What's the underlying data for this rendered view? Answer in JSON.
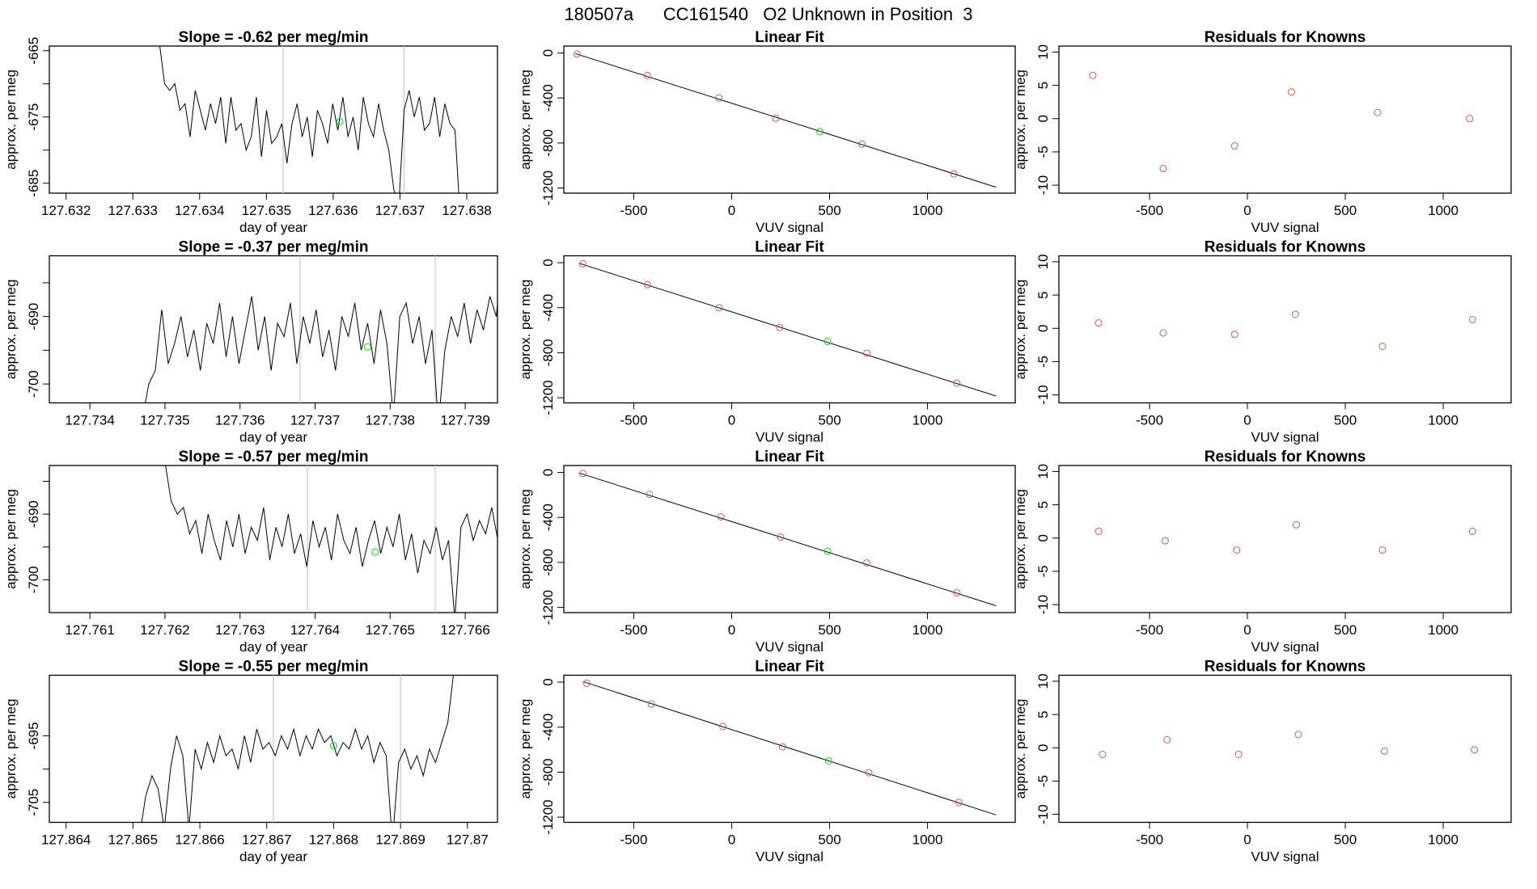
{
  "title": "180507a      CC161540   O2 Unknown in Position  3",
  "colors": {
    "known": "#cd5c5c",
    "unknown": "#00dd00",
    "line": "#000000",
    "vline": "#cccccc"
  },
  "chart_data": [
    {
      "type": "line",
      "title": "Slope =  -0.62  per meg/min",
      "xlabel": "day of year",
      "ylabel": "approx. per meg",
      "xlim": [
        127.63175,
        127.63846
      ],
      "ylim": [
        -686.5,
        -664.3
      ],
      "xticks": [
        127.632,
        127.633,
        127.634,
        127.635,
        127.636,
        127.637,
        127.638
      ],
      "yticks": [
        -665,
        -670,
        -675,
        -680,
        -685
      ],
      "ytick_labels": [
        "-665",
        "",
        "-675",
        "",
        "-685"
      ],
      "vlines": [
        127.63525,
        127.63706
      ],
      "unknown_point": [
        127.6361,
        -675.7
      ],
      "x_range": [
        127.6334,
        127.6379
      ],
      "values": [
        -664,
        -670,
        -671,
        -670,
        -674,
        -673,
        -678,
        -671,
        -674,
        -677,
        -673,
        -676,
        -672,
        -679,
        -672,
        -677,
        -676,
        -680,
        -678,
        -672,
        -681,
        -674,
        -679,
        -678,
        -676,
        -682,
        -676,
        -673,
        -678,
        -675,
        -681,
        -674,
        -676,
        -679,
        -673,
        -677,
        -672,
        -678,
        -675,
        -680,
        -672,
        -676,
        -678,
        -673,
        -677,
        -680,
        -686,
        -688,
        -674,
        -671,
        -675,
        -672,
        -677,
        -676,
        -672,
        -678,
        -673,
        -676,
        -677,
        -690
      ]
    },
    {
      "type": "line",
      "title": "Slope =  -0.37  per meg/min",
      "xlabel": "day of year",
      "ylabel": "approx. per meg",
      "xlim": [
        127.73346,
        127.73943
      ],
      "ylim": [
        -702.8,
        -681
      ],
      "xticks": [
        127.734,
        127.735,
        127.736,
        127.737,
        127.738,
        127.739
      ],
      "yticks": [
        -685,
        -690,
        -695,
        -700
      ],
      "ytick_labels": [
        "",
        "-690",
        "",
        "-700"
      ],
      "vlines": [
        127.7368,
        127.7386
      ],
      "unknown_point": [
        127.7377,
        -694.5
      ],
      "x_range": [
        127.7347,
        127.7395
      ],
      "values": [
        -705,
        -700,
        -698,
        -689,
        -697,
        -694,
        -690,
        -696,
        -692,
        -698,
        -691,
        -694,
        -688,
        -696,
        -690,
        -697,
        -692,
        -687,
        -695,
        -690,
        -698,
        -691,
        -693,
        -688,
        -697,
        -690,
        -694,
        -689,
        -696,
        -692,
        -698,
        -690,
        -693,
        -688,
        -695,
        -691,
        -697,
        -689,
        -694,
        -705,
        -690,
        -688,
        -694,
        -690,
        -697,
        -692,
        -706,
        -695,
        -690,
        -693,
        -688,
        -694,
        -689,
        -692,
        -687,
        -690,
        -680
      ]
    },
    {
      "type": "line",
      "title": "Slope =  -0.57  per meg/min",
      "xlabel": "day of year",
      "ylabel": "approx. per meg",
      "xlim": [
        127.76046,
        127.76643
      ],
      "ylim": [
        -705,
        -682.6
      ],
      "xticks": [
        127.761,
        127.762,
        127.763,
        127.764,
        127.765,
        127.766
      ],
      "yticks": [
        -685,
        -690,
        -695,
        -700
      ],
      "ytick_labels": [
        "",
        "-690",
        "",
        "-700"
      ],
      "vlines": [
        127.7639,
        127.7656
      ],
      "unknown_point": [
        127.7648,
        -695.8
      ],
      "x_range": [
        127.762,
        127.7666
      ],
      "values": [
        -682,
        -688,
        -690,
        -689,
        -693,
        -691,
        -696,
        -690,
        -694,
        -697,
        -691,
        -695,
        -690,
        -696,
        -692,
        -694,
        -689,
        -697,
        -692,
        -695,
        -690,
        -696,
        -693,
        -698,
        -691,
        -695,
        -692,
        -697,
        -690,
        -694,
        -696,
        -692,
        -698,
        -694,
        -691,
        -696,
        -692,
        -695,
        -690,
        -697,
        -693,
        -699,
        -694,
        -696,
        -692,
        -697,
        -694,
        -706,
        -692,
        -690,
        -694,
        -691,
        -693,
        -689,
        -694,
        -691,
        -706
      ]
    },
    {
      "type": "line",
      "title": "Slope =  -0.55  per meg/min",
      "xlabel": "day of year",
      "ylabel": "approx. per meg",
      "xlim": [
        127.86375,
        127.87045
      ],
      "ylim": [
        -708,
        -685.9
      ],
      "xticks": [
        127.864,
        127.865,
        127.866,
        127.867,
        127.868,
        127.869,
        127.87
      ],
      "yticks": [
        -695,
        -700,
        -705
      ],
      "ytick_labels": [
        "-695",
        "",
        "-705"
      ],
      "vlines": [
        127.8671,
        127.869
      ],
      "unknown_point": [
        127.868,
        -696.5
      ],
      "x_range": [
        127.8651,
        127.8698
      ],
      "values": [
        -710,
        -704,
        -701,
        -703,
        -709,
        -700,
        -695,
        -698,
        -709,
        -697,
        -700,
        -696,
        -699,
        -695,
        -698,
        -697,
        -700,
        -695,
        -699,
        -694,
        -697,
        -696,
        -698,
        -695,
        -697,
        -694,
        -698,
        -695,
        -697,
        -694,
        -696,
        -695,
        -698,
        -696,
        -697,
        -694,
        -697,
        -695,
        -699,
        -696,
        -698,
        -711,
        -699,
        -697,
        -700,
        -698,
        -701,
        -697,
        -699,
        -696,
        -693,
        -685
      ]
    }
  ],
  "fit_data": [
    {
      "title": "Linear Fit",
      "xlabel": "VUV signal",
      "ylabel": "approx. per meg",
      "xlim": [
        -857,
        1448
      ],
      "ylim": [
        -1246,
        61
      ],
      "xticks": [
        -500,
        0,
        500,
        1000
      ],
      "yticks": [
        0,
        -400,
        -800,
        -1200
      ],
      "line": [
        [
          -800,
          -5
        ],
        [
          1350,
          -1193
        ]
      ],
      "known": [
        [
          -790,
          -10
        ],
        [
          -430,
          -200
        ],
        [
          -65,
          -400
        ],
        [
          225,
          -580
        ],
        [
          665,
          -810
        ],
        [
          1135,
          -1075
        ]
      ],
      "unknown": [
        [
          450,
          -700
        ]
      ]
    },
    {
      "title": "Linear Fit",
      "xlabel": "VUV signal",
      "ylabel": "approx. per meg",
      "xlim": [
        -857,
        1448
      ],
      "ylim": [
        -1246,
        61
      ],
      "xticks": [
        -500,
        0,
        500,
        1000
      ],
      "yticks": [
        0,
        -400,
        -800,
        -1200
      ],
      "line": [
        [
          -780,
          -5
        ],
        [
          1350,
          -1185
        ]
      ],
      "known": [
        [
          -760,
          -10
        ],
        [
          -430,
          -195
        ],
        [
          -65,
          -400
        ],
        [
          245,
          -575
        ],
        [
          690,
          -805
        ],
        [
          1150,
          -1070
        ]
      ],
      "unknown": [
        [
          490,
          -700
        ]
      ]
    },
    {
      "title": "Linear Fit",
      "xlabel": "VUV signal",
      "ylabel": "approx. per meg",
      "xlim": [
        -857,
        1448
      ],
      "ylim": [
        -1246,
        61
      ],
      "xticks": [
        -500,
        0,
        500,
        1000
      ],
      "yticks": [
        0,
        -400,
        -800,
        -1200
      ],
      "line": [
        [
          -780,
          -5
        ],
        [
          1350,
          -1185
        ]
      ],
      "known": [
        [
          -760,
          -10
        ],
        [
          -420,
          -195
        ],
        [
          -55,
          -395
        ],
        [
          250,
          -575
        ],
        [
          690,
          -805
        ],
        [
          1150,
          -1070
        ]
      ],
      "unknown": [
        [
          490,
          -700
        ]
      ]
    },
    {
      "title": "Linear Fit",
      "xlabel": "VUV signal",
      "ylabel": "approx. per meg",
      "xlim": [
        -857,
        1448
      ],
      "ylim": [
        -1246,
        61
      ],
      "xticks": [
        -500,
        0,
        500,
        1000
      ],
      "yticks": [
        0,
        -400,
        -800,
        -1200
      ],
      "line": [
        [
          -760,
          5
        ],
        [
          1350,
          -1180
        ]
      ],
      "known": [
        [
          -740,
          -10
        ],
        [
          -410,
          -195
        ],
        [
          -45,
          -395
        ],
        [
          260,
          -575
        ],
        [
          700,
          -805
        ],
        [
          1160,
          -1070
        ]
      ],
      "unknown": [
        [
          495,
          -700
        ]
      ]
    }
  ],
  "resid_data": [
    {
      "title": "Residuals for Knowns",
      "xlabel": "VUV signal",
      "ylabel": "approx. per meg",
      "xlim": [
        -963,
        1347
      ],
      "ylim": [
        -11.2,
        10.9
      ],
      "xticks": [
        -500,
        0,
        500,
        1000
      ],
      "yticks": [
        10,
        5,
        0,
        -5,
        -10
      ],
      "points": [
        [
          -790,
          6.5
        ],
        [
          -430,
          -7.5
        ],
        [
          -65,
          -4.1
        ],
        [
          225,
          4.0
        ],
        [
          665,
          0.9
        ],
        [
          1135,
          0.0
        ]
      ]
    },
    {
      "title": "Residuals for Knowns",
      "xlabel": "VUV signal",
      "ylabel": "approx. per meg",
      "xlim": [
        -963,
        1347
      ],
      "ylim": [
        -11.2,
        10.9
      ],
      "xticks": [
        -500,
        0,
        500,
        1000
      ],
      "yticks": [
        10,
        5,
        0,
        -5,
        -10
      ],
      "points": [
        [
          -760,
          0.8
        ],
        [
          -430,
          -0.7
        ],
        [
          -65,
          -0.9
        ],
        [
          245,
          2.1
        ],
        [
          690,
          -2.7
        ],
        [
          1150,
          1.3
        ]
      ]
    },
    {
      "title": "Residuals for Knowns",
      "xlabel": "VUV signal",
      "ylabel": "approx. per meg",
      "xlim": [
        -963,
        1347
      ],
      "ylim": [
        -11.2,
        10.9
      ],
      "xticks": [
        -500,
        0,
        500,
        1000
      ],
      "yticks": [
        10,
        5,
        0,
        -5,
        -10
      ],
      "points": [
        [
          -760,
          1.0
        ],
        [
          -420,
          -0.4
        ],
        [
          -55,
          -1.8
        ],
        [
          250,
          2.0
        ],
        [
          690,
          -1.8
        ],
        [
          1150,
          1.0
        ]
      ]
    },
    {
      "title": "Residuals for Knowns",
      "xlabel": "VUV signal",
      "ylabel": "approx. per meg",
      "xlim": [
        -963,
        1347
      ],
      "ylim": [
        -11.2,
        10.9
      ],
      "xticks": [
        -500,
        0,
        500,
        1000
      ],
      "yticks": [
        10,
        5,
        0,
        -5,
        -10
      ],
      "points": [
        [
          -740,
          -1.0
        ],
        [
          -410,
          1.2
        ],
        [
          -45,
          -1.0
        ],
        [
          260,
          2.0
        ],
        [
          700,
          -0.5
        ],
        [
          1160,
          -0.3
        ]
      ]
    }
  ]
}
